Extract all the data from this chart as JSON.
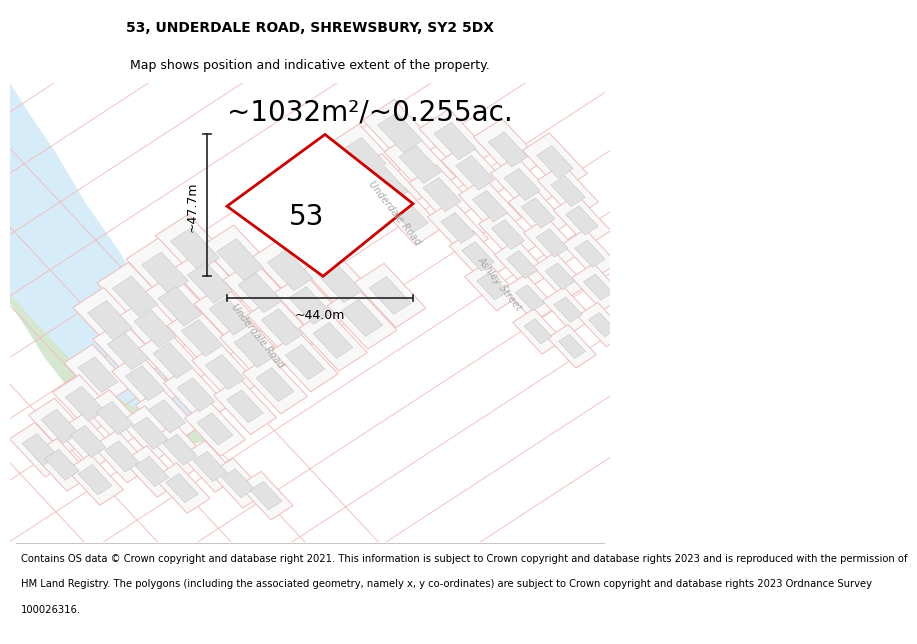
{
  "title_line1": "53, UNDERDALE ROAD, SHREWSBURY, SY2 5DX",
  "title_line2": "Map shows position and indicative extent of the property.",
  "area_text": "~1032m²/~0.255ac.",
  "number_label": "53",
  "width_label": "~44.0m",
  "height_label": "~47.7m",
  "footer_lines": [
    "Contains OS data © Crown copyright and database right 2021. This information is subject to Crown copyright and database rights 2023 and is reproduced with the permission of",
    "HM Land Registry. The polygons (including the associated geometry, namely x, y co-ordinates) are subject to Crown copyright and database rights 2023 Ordnance Survey",
    "100026316."
  ],
  "map_bg": "#f7f7f7",
  "water_color": "#d6ecf8",
  "green_color": "#d5e8cf",
  "plot_fill": "#ffffff",
  "plot_edge": "#cc0000",
  "building_fill": "#e2e2e2",
  "building_edge": "#cccccc",
  "road_outline_color": "#f0bbbb",
  "dim_color": "#222222",
  "road_label_color": "#aaaaaa",
  "title_fs": 10,
  "subtitle_fs": 9,
  "area_fs": 20,
  "num_fs": 20,
  "dim_fs": 9,
  "footer_fs": 7.2,
  "road_label_fs": 7
}
